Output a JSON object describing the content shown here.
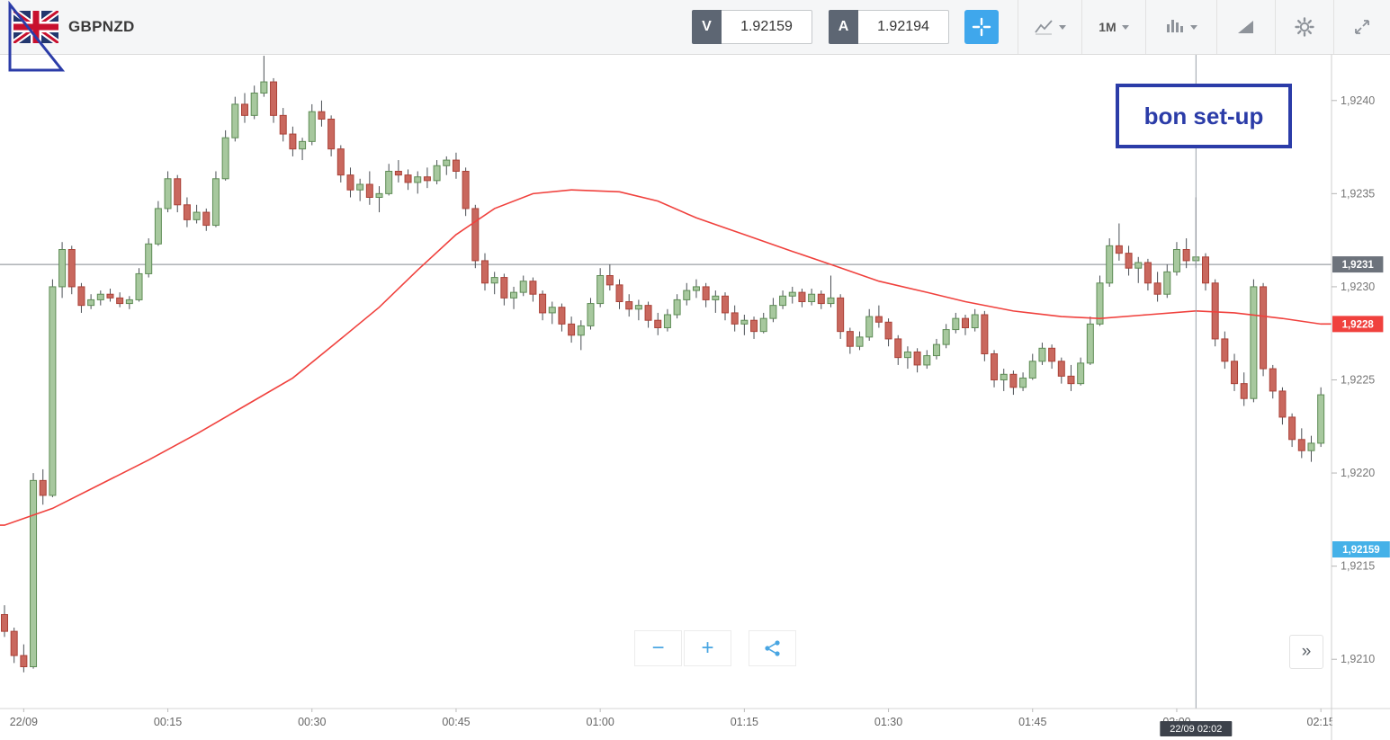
{
  "toolbar": {
    "symbol": "GBPNZD",
    "sell": {
      "label": "V",
      "price": "1.92159"
    },
    "buy": {
      "label": "A",
      "price": "1.92194"
    },
    "timeframe": "1M"
  },
  "annotations": {
    "note_text": "bon set-up"
  },
  "controls": {
    "zoom_out": "−",
    "zoom_in": "+",
    "expand_panel": "»"
  },
  "colors": {
    "accent_blue": "#3fa7ec",
    "annotation_navy": "#2b3ca8",
    "up_fill": "#a7c89e",
    "up_stroke": "#5e8c55",
    "down_fill": "#c9685e",
    "down_stroke": "#ab4238",
    "ma_red": "#f0413d"
  },
  "chart_data": {
    "type": "candlestick",
    "symbol": "GBPNZD",
    "interval": "1M",
    "price_range": [
      1.92075,
      1.92425
    ],
    "level_line": {
      "value": 1.92312,
      "label": "1,9231",
      "badge_bg": "#6d737c"
    },
    "ma_badge": {
      "value": 1.9228,
      "label": "1,9228",
      "badge_bg": "#f0413d"
    },
    "price_badge": {
      "value": 1.92159,
      "label": "1,92159",
      "badge_bg": "#45b1e8"
    },
    "crosshair": {
      "index": 124,
      "time_label": "22/09 02:02"
    },
    "price_ticks": [
      {
        "value": 1.924,
        "label": "1,9240"
      },
      {
        "value": 1.9235,
        "label": "1,9235"
      },
      {
        "value": 1.923,
        "label": "1,9230"
      },
      {
        "value": 1.9225,
        "label": "1,9225"
      },
      {
        "value": 1.922,
        "label": "1,9220"
      },
      {
        "value": 1.9215,
        "label": "1,9215"
      },
      {
        "value": 1.921,
        "label": "1,9210"
      }
    ],
    "time_ticks": [
      {
        "index": 2,
        "label": "22/09"
      },
      {
        "index": 17,
        "label": "00:15"
      },
      {
        "index": 32,
        "label": "00:30"
      },
      {
        "index": 47,
        "label": "00:45"
      },
      {
        "index": 62,
        "label": "01:00"
      },
      {
        "index": 77,
        "label": "01:15"
      },
      {
        "index": 92,
        "label": "01:30"
      },
      {
        "index": 107,
        "label": "01:45"
      },
      {
        "index": 122,
        "label": "02:00"
      },
      {
        "index": 137,
        "label": "02:15"
      }
    ],
    "ma_points": [
      [
        0,
        1.92172
      ],
      [
        5,
        1.92181
      ],
      [
        10,
        1.92194
      ],
      [
        15,
        1.92207
      ],
      [
        20,
        1.92221
      ],
      [
        25,
        1.92236
      ],
      [
        30,
        1.92251
      ],
      [
        35,
        1.92272
      ],
      [
        39,
        1.92289
      ],
      [
        43,
        1.92309
      ],
      [
        47,
        1.92328
      ],
      [
        51,
        1.92342
      ],
      [
        55,
        1.9235
      ],
      [
        59,
        1.92352
      ],
      [
        64,
        1.92351
      ],
      [
        68,
        1.92346
      ],
      [
        72,
        1.92337
      ],
      [
        77,
        1.92328
      ],
      [
        82,
        1.92319
      ],
      [
        86,
        1.92312
      ],
      [
        91,
        1.92303
      ],
      [
        96,
        1.92297
      ],
      [
        100,
        1.92292
      ],
      [
        105,
        1.92287
      ],
      [
        110,
        1.92284
      ],
      [
        114,
        1.92283
      ],
      [
        119,
        1.92285
      ],
      [
        124,
        1.92287
      ],
      [
        128,
        1.92286
      ],
      [
        133,
        1.92283
      ],
      [
        137,
        1.9228
      ]
    ],
    "candles": [
      [
        1.92124,
        1.92129,
        1.92112,
        1.92115
      ],
      [
        1.92115,
        1.92117,
        1.92098,
        1.92102
      ],
      [
        1.92102,
        1.92108,
        1.92093,
        1.92096
      ],
      [
        1.92096,
        1.922,
        1.92095,
        1.92196
      ],
      [
        1.92196,
        1.92202,
        1.92183,
        1.92188
      ],
      [
        1.92188,
        1.92304,
        1.92187,
        1.923
      ],
      [
        1.923,
        1.92324,
        1.92294,
        1.9232
      ],
      [
        1.9232,
        1.92322,
        1.92296,
        1.923
      ],
      [
        1.923,
        1.92302,
        1.92286,
        1.9229
      ],
      [
        1.9229,
        1.92296,
        1.92288,
        1.92293
      ],
      [
        1.92293,
        1.92298,
        1.9229,
        1.92296
      ],
      [
        1.92296,
        1.92299,
        1.92292,
        1.92294
      ],
      [
        1.92294,
        1.92297,
        1.92289,
        1.92291
      ],
      [
        1.92291,
        1.92295,
        1.92288,
        1.92293
      ],
      [
        1.92293,
        1.9231,
        1.92292,
        1.92307
      ],
      [
        1.92307,
        1.92326,
        1.92305,
        1.92323
      ],
      [
        1.92323,
        1.92346,
        1.92322,
        1.92342
      ],
      [
        1.92342,
        1.92362,
        1.9234,
        1.92358
      ],
      [
        1.92358,
        1.9236,
        1.9234,
        1.92344
      ],
      [
        1.92344,
        1.92348,
        1.92332,
        1.92336
      ],
      [
        1.92336,
        1.92344,
        1.92334,
        1.9234
      ],
      [
        1.9234,
        1.92342,
        1.9233,
        1.92333
      ],
      [
        1.92333,
        1.92362,
        1.92332,
        1.92358
      ],
      [
        1.92358,
        1.92384,
        1.92357,
        1.9238
      ],
      [
        1.9238,
        1.92402,
        1.92378,
        1.92398
      ],
      [
        1.92398,
        1.92404,
        1.92388,
        1.92392
      ],
      [
        1.92392,
        1.92408,
        1.9239,
        1.92404
      ],
      [
        1.92404,
        1.92424,
        1.92402,
        1.9241
      ],
      [
        1.9241,
        1.92412,
        1.92388,
        1.92392
      ],
      [
        1.92392,
        1.92396,
        1.92378,
        1.92382
      ],
      [
        1.92382,
        1.92386,
        1.9237,
        1.92374
      ],
      [
        1.92374,
        1.9238,
        1.92368,
        1.92378
      ],
      [
        1.92378,
        1.92398,
        1.92376,
        1.92394
      ],
      [
        1.92394,
        1.924,
        1.92386,
        1.9239
      ],
      [
        1.9239,
        1.92392,
        1.9237,
        1.92374
      ],
      [
        1.92374,
        1.92376,
        1.92356,
        1.9236
      ],
      [
        1.9236,
        1.92364,
        1.92348,
        1.92352
      ],
      [
        1.92352,
        1.92358,
        1.92346,
        1.92355
      ],
      [
        1.92355,
        1.92362,
        1.92344,
        1.92348
      ],
      [
        1.92348,
        1.92354,
        1.9234,
        1.9235
      ],
      [
        1.9235,
        1.92366,
        1.92349,
        1.92362
      ],
      [
        1.92362,
        1.92368,
        1.92356,
        1.9236
      ],
      [
        1.9236,
        1.92363,
        1.92352,
        1.92356
      ],
      [
        1.92356,
        1.92362,
        1.9235,
        1.92359
      ],
      [
        1.92359,
        1.92364,
        1.92353,
        1.92357
      ],
      [
        1.92357,
        1.92368,
        1.92355,
        1.92365
      ],
      [
        1.92365,
        1.9237,
        1.9236,
        1.92368
      ],
      [
        1.92368,
        1.92372,
        1.92358,
        1.92362
      ],
      [
        1.92362,
        1.92364,
        1.92338,
        1.92342
      ],
      [
        1.92342,
        1.92344,
        1.9231,
        1.92314
      ],
      [
        1.92314,
        1.92318,
        1.92298,
        1.92302
      ],
      [
        1.92302,
        1.92308,
        1.92296,
        1.92305
      ],
      [
        1.92305,
        1.92307,
        1.9229,
        1.92294
      ],
      [
        1.92294,
        1.923,
        1.92288,
        1.92297
      ],
      [
        1.92297,
        1.92306,
        1.92295,
        1.92303
      ],
      [
        1.92303,
        1.92305,
        1.92292,
        1.92296
      ],
      [
        1.92296,
        1.92298,
        1.92282,
        1.92286
      ],
      [
        1.92286,
        1.92292,
        1.9228,
        1.92289
      ],
      [
        1.92289,
        1.92291,
        1.92276,
        1.9228
      ],
      [
        1.9228,
        1.92284,
        1.9227,
        1.92274
      ],
      [
        1.92274,
        1.92282,
        1.92266,
        1.92279
      ],
      [
        1.92279,
        1.92294,
        1.92277,
        1.92291
      ],
      [
        1.92291,
        1.9231,
        1.92289,
        1.92306
      ],
      [
        1.92306,
        1.92312,
        1.92298,
        1.92301
      ],
      [
        1.92301,
        1.92304,
        1.92288,
        1.92292
      ],
      [
        1.92292,
        1.92296,
        1.92284,
        1.92288
      ],
      [
        1.92288,
        1.92293,
        1.92282,
        1.9229
      ],
      [
        1.9229,
        1.92292,
        1.92278,
        1.92282
      ],
      [
        1.92282,
        1.92286,
        1.92274,
        1.92278
      ],
      [
        1.92278,
        1.92288,
        1.92276,
        1.92285
      ],
      [
        1.92285,
        1.92296,
        1.92283,
        1.92293
      ],
      [
        1.92293,
        1.92302,
        1.9229,
        1.92298
      ],
      [
        1.92298,
        1.92304,
        1.92294,
        1.923
      ],
      [
        1.923,
        1.92302,
        1.92289,
        1.92293
      ],
      [
        1.92293,
        1.92298,
        1.92286,
        1.92295
      ],
      [
        1.92295,
        1.92297,
        1.92282,
        1.92286
      ],
      [
        1.92286,
        1.9229,
        1.92276,
        1.9228
      ],
      [
        1.9228,
        1.92285,
        1.92274,
        1.92282
      ],
      [
        1.92282,
        1.92284,
        1.92272,
        1.92276
      ],
      [
        1.92276,
        1.92286,
        1.92275,
        1.92283
      ],
      [
        1.92283,
        1.92294,
        1.92281,
        1.9229
      ],
      [
        1.9229,
        1.92298,
        1.92288,
        1.92295
      ],
      [
        1.92295,
        1.923,
        1.92291,
        1.92297
      ],
      [
        1.92297,
        1.92299,
        1.92289,
        1.92292
      ],
      [
        1.92292,
        1.92299,
        1.9229,
        1.92296
      ],
      [
        1.92296,
        1.92298,
        1.92288,
        1.92291
      ],
      [
        1.92291,
        1.92306,
        1.92289,
        1.92294
      ],
      [
        1.92294,
        1.92296,
        1.92272,
        1.92276
      ],
      [
        1.92276,
        1.92278,
        1.92264,
        1.92268
      ],
      [
        1.92268,
        1.92276,
        1.92266,
        1.92273
      ],
      [
        1.92273,
        1.92288,
        1.92271,
        1.92284
      ],
      [
        1.92284,
        1.9229,
        1.92278,
        1.92281
      ],
      [
        1.92281,
        1.92283,
        1.92268,
        1.92272
      ],
      [
        1.92272,
        1.92274,
        1.92258,
        1.92262
      ],
      [
        1.92262,
        1.92268,
        1.92256,
        1.92265
      ],
      [
        1.92265,
        1.92267,
        1.92254,
        1.92258
      ],
      [
        1.92258,
        1.92266,
        1.92256,
        1.92263
      ],
      [
        1.92263,
        1.92272,
        1.92261,
        1.92269
      ],
      [
        1.92269,
        1.9228,
        1.92267,
        1.92277
      ],
      [
        1.92277,
        1.92286,
        1.92275,
        1.92283
      ],
      [
        1.92283,
        1.92285,
        1.92274,
        1.92278
      ],
      [
        1.92278,
        1.92288,
        1.92276,
        1.92285
      ],
      [
        1.92285,
        1.92287,
        1.9226,
        1.92264
      ],
      [
        1.92264,
        1.92266,
        1.92246,
        1.9225
      ],
      [
        1.9225,
        1.92256,
        1.92244,
        1.92253
      ],
      [
        1.92253,
        1.92255,
        1.92242,
        1.92246
      ],
      [
        1.92246,
        1.92254,
        1.92244,
        1.92251
      ],
      [
        1.92251,
        1.92264,
        1.9225,
        1.9226
      ],
      [
        1.9226,
        1.9227,
        1.92258,
        1.92267
      ],
      [
        1.92267,
        1.92269,
        1.92256,
        1.9226
      ],
      [
        1.9226,
        1.92262,
        1.92248,
        1.92252
      ],
      [
        1.92252,
        1.92258,
        1.92244,
        1.92248
      ],
      [
        1.92248,
        1.92262,
        1.92247,
        1.92259
      ],
      [
        1.92259,
        1.92284,
        1.92258,
        1.9228
      ],
      [
        1.9228,
        1.92306,
        1.92279,
        1.92302
      ],
      [
        1.92302,
        1.92326,
        1.923,
        1.92322
      ],
      [
        1.92322,
        1.92334,
        1.92314,
        1.92318
      ],
      [
        1.92318,
        1.92322,
        1.92306,
        1.9231
      ],
      [
        1.9231,
        1.92316,
        1.92302,
        1.92313
      ],
      [
        1.92313,
        1.92315,
        1.92298,
        1.92302
      ],
      [
        1.92302,
        1.92308,
        1.92292,
        1.92296
      ],
      [
        1.92296,
        1.92312,
        1.92294,
        1.92308
      ],
      [
        1.92308,
        1.92324,
        1.92306,
        1.9232
      ],
      [
        1.9232,
        1.92326,
        1.9231,
        1.92314
      ],
      [
        1.92314,
        1.92348,
        1.9231,
        1.92316
      ],
      [
        1.92316,
        1.92318,
        1.92298,
        1.92302
      ],
      [
        1.92302,
        1.92304,
        1.92268,
        1.92272
      ],
      [
        1.92272,
        1.92276,
        1.92256,
        1.9226
      ],
      [
        1.9226,
        1.92264,
        1.92244,
        1.92248
      ],
      [
        1.92248,
        1.92254,
        1.92236,
        1.9224
      ],
      [
        1.9224,
        1.92304,
        1.92238,
        1.923
      ],
      [
        1.923,
        1.92302,
        1.92252,
        1.92256
      ],
      [
        1.92256,
        1.92258,
        1.9224,
        1.92244
      ],
      [
        1.92244,
        1.92246,
        1.92226,
        1.9223
      ],
      [
        1.9223,
        1.92232,
        1.92214,
        1.92218
      ],
      [
        1.92218,
        1.92224,
        1.92208,
        1.92212
      ],
      [
        1.92212,
        1.9222,
        1.92206,
        1.92216
      ],
      [
        1.92216,
        1.92246,
        1.92214,
        1.92242
      ]
    ]
  }
}
